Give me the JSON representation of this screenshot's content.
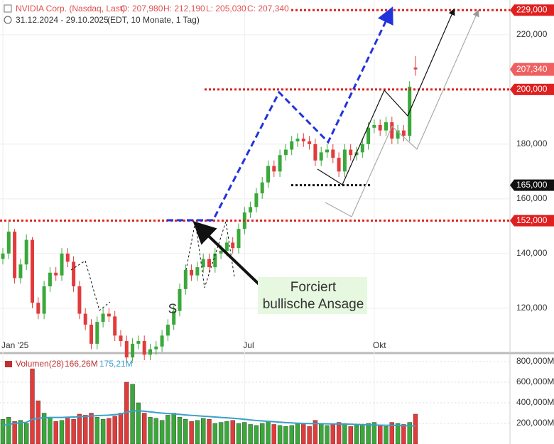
{
  "header": {
    "name": "NVIDIA Corp. (Nasdaq, Last)",
    "open": "O: 207,980",
    "high": "H: 212,190",
    "low": "L: 205,030",
    "close": "C: 207,340",
    "range": "31.12.2024 - 29.10.2025",
    "info": "(EDT, 10 Monate, 1 Tag)"
  },
  "annotations": {
    "box_line1": "Forciert",
    "box_line2": "bullische Ansage",
    "marker": "S"
  },
  "chart_data": [
    {
      "type": "candlestick",
      "categories": [
        "Jan '25",
        null,
        null,
        null,
        null,
        null,
        null,
        null,
        null,
        null,
        null,
        null,
        null,
        null,
        null,
        null,
        null,
        null,
        null,
        null,
        null,
        null,
        null,
        null,
        null,
        null,
        null,
        null,
        null,
        null,
        null,
        null,
        null,
        null,
        null,
        null,
        null,
        null,
        null,
        null,
        null,
        "Jul",
        null,
        null,
        null,
        null,
        null,
        null,
        null,
        null,
        null,
        null,
        null,
        null,
        null,
        null,
        null,
        null,
        null,
        null,
        null,
        null,
        null,
        "Okt",
        null,
        null,
        null,
        null,
        null,
        null,
        null
      ],
      "open": [
        138,
        140,
        148,
        131,
        136,
        145,
        122,
        118,
        128,
        133,
        132,
        140,
        137,
        128,
        118,
        114,
        107,
        115,
        118,
        117,
        110,
        108,
        102,
        107,
        108,
        103,
        105,
        106,
        110,
        114,
        119,
        127,
        134,
        132,
        135,
        138,
        135,
        140,
        141,
        144,
        142,
        149,
        155,
        157,
        162,
        166,
        172,
        170,
        176,
        178,
        181,
        182,
        181,
        180,
        174,
        177,
        178,
        175,
        170,
        178,
        176,
        177,
        180,
        186,
        187,
        185,
        188,
        182,
        185,
        183,
        207.98
      ],
      "high": [
        142,
        152,
        149,
        138,
        147,
        146,
        124,
        130,
        135,
        135,
        142,
        142,
        139,
        130,
        120,
        116,
        117,
        120,
        120,
        119,
        112,
        110,
        109,
        110,
        110,
        107,
        108,
        112,
        116,
        121,
        129,
        136,
        136,
        137,
        140,
        140,
        142,
        143,
        146,
        146,
        151,
        157,
        159,
        164,
        168,
        174,
        174,
        178,
        180,
        183,
        184,
        184,
        183,
        182,
        179,
        180,
        180,
        177,
        180,
        180,
        179,
        182,
        188,
        189,
        189,
        190,
        190,
        187,
        187,
        203,
        212.19
      ],
      "low": [
        136,
        138,
        129,
        129,
        134,
        120,
        116,
        116,
        126,
        130,
        130,
        135,
        126,
        116,
        112,
        105,
        105,
        113,
        115,
        108,
        106,
        100,
        100,
        105,
        101,
        101,
        103,
        104,
        108,
        112,
        117,
        125,
        130,
        130,
        133,
        133,
        133,
        138,
        139,
        140,
        140,
        147,
        153,
        155,
        160,
        164,
        168,
        168,
        174,
        176,
        179,
        179,
        178,
        172,
        172,
        175,
        173,
        168,
        168,
        174,
        174,
        175,
        178,
        184,
        183,
        183,
        180,
        180,
        181,
        181,
        205.03
      ],
      "close": [
        140,
        148,
        131,
        136,
        145,
        122,
        118,
        128,
        133,
        132,
        140,
        137,
        128,
        118,
        114,
        107,
        115,
        118,
        117,
        110,
        108,
        102,
        107,
        108,
        103,
        105,
        106,
        110,
        114,
        119,
        127,
        134,
        132,
        135,
        138,
        135,
        140,
        141,
        144,
        142,
        149,
        155,
        157,
        162,
        166,
        172,
        170,
        176,
        178,
        181,
        182,
        181,
        180,
        174,
        177,
        178,
        175,
        170,
        178,
        176,
        177,
        180,
        186,
        187,
        185,
        188,
        182,
        185,
        183,
        201,
        207.34
      ],
      "up_color": "#3aa83a",
      "down_color": "#e23b3b",
      "ylim": [
        103.6,
        232.7
      ],
      "yticks": [
        {
          "value": 120,
          "label": "120,000"
        },
        {
          "value": 140,
          "label": "140,000"
        },
        {
          "value": 160,
          "label": "160,000"
        },
        {
          "value": 180,
          "label": "180,000"
        },
        {
          "value": 220,
          "label": "220,000"
        }
      ],
      "levels": [
        {
          "value": 229,
          "label": "229,000",
          "color": "#e02020"
        },
        {
          "value": 200,
          "label": "200,000",
          "color": "#e02020"
        },
        {
          "value": 165,
          "label": "165,000",
          "color": "#111111"
        },
        {
          "value": 152,
          "label": "152,000",
          "color": "#e02020"
        }
      ],
      "last": {
        "value": 207.34,
        "label": "207,340",
        "color": "#f06060"
      },
      "grid": true
    },
    {
      "type": "volume",
      "title": "Volumen(28)",
      "series": [
        {
          "name": "166,26M",
          "color": "#c03030",
          "values": [
            240,
            260,
            220,
            230,
            200,
            730,
            420,
            300,
            260,
            220,
            230,
            250,
            240,
            290,
            280,
            300,
            260,
            240,
            250,
            270,
            300,
            600,
            580,
            400,
            300,
            260,
            250,
            230,
            280,
            300,
            260,
            240,
            220,
            230,
            250,
            240,
            200,
            210,
            220,
            230,
            200,
            210,
            190,
            180,
            200,
            220,
            190,
            180,
            170,
            180,
            200,
            190,
            170,
            230,
            200,
            180,
            190,
            210,
            200,
            170,
            180,
            190,
            200,
            210,
            180,
            170,
            210,
            200,
            190,
            210,
            290
          ]
        },
        {
          "name": "175,21M",
          "color": "#3aa0c8",
          "values": [
            180,
            190,
            200,
            205,
            210,
            240,
            250,
            255,
            258,
            258,
            258,
            260,
            262,
            265,
            268,
            272,
            275,
            278,
            280,
            285,
            290,
            310,
            320,
            322,
            318,
            312,
            305,
            300,
            296,
            292,
            288,
            282,
            278,
            274,
            270,
            266,
            262,
            258,
            254,
            250,
            246,
            240,
            234,
            228,
            224,
            220,
            216,
            212,
            208,
            205,
            202,
            200,
            198,
            198,
            197,
            196,
            195,
            194,
            193,
            192,
            190,
            188,
            186,
            184,
            183,
            182,
            181,
            180,
            178,
            176,
            175.21
          ]
        }
      ],
      "ylim": [
        0,
        862
      ],
      "yticks": [
        {
          "value": 200,
          "label": "200,000M"
        },
        {
          "value": 400,
          "label": "400,000M"
        },
        {
          "value": 600,
          "label": "600,000M"
        },
        {
          "value": 800,
          "label": "800,000M"
        }
      ]
    }
  ]
}
